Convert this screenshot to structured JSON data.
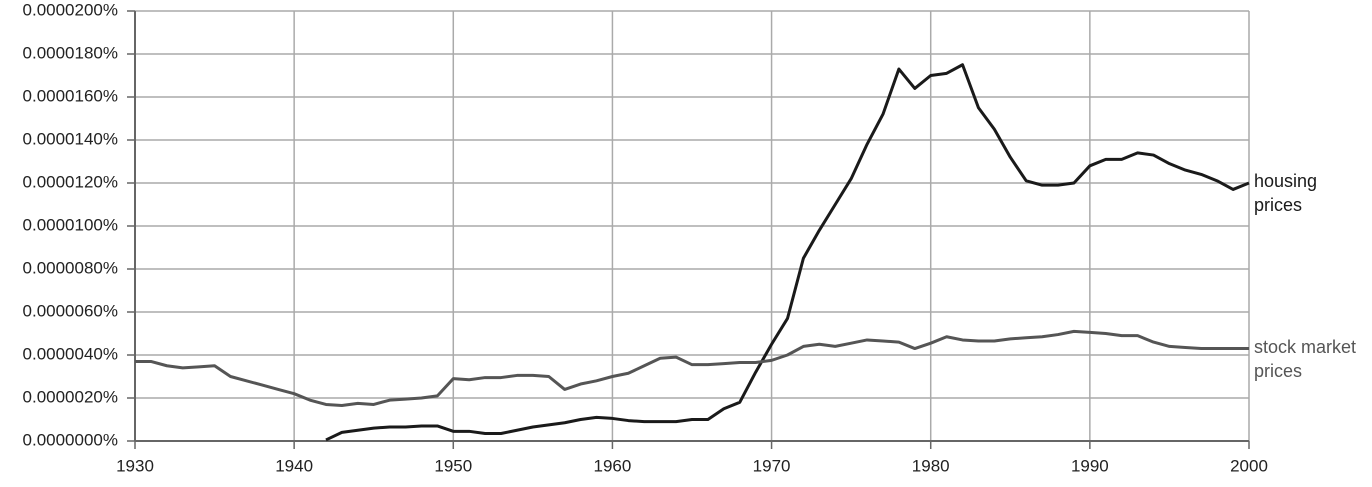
{
  "chart_data": {
    "type": "line",
    "x": [
      1930,
      1931,
      1932,
      1933,
      1934,
      1935,
      1936,
      1937,
      1938,
      1939,
      1940,
      1941,
      1942,
      1943,
      1944,
      1945,
      1946,
      1947,
      1948,
      1949,
      1950,
      1951,
      1952,
      1953,
      1954,
      1955,
      1956,
      1957,
      1958,
      1959,
      1960,
      1961,
      1962,
      1963,
      1964,
      1965,
      1966,
      1967,
      1968,
      1969,
      1970,
      1971,
      1972,
      1973,
      1974,
      1975,
      1976,
      1977,
      1978,
      1979,
      1980,
      1981,
      1982,
      1983,
      1984,
      1985,
      1986,
      1987,
      1988,
      1989,
      1990,
      1991,
      1992,
      1993,
      1994,
      1995,
      1996,
      1997,
      1998,
      1999,
      2000
    ],
    "series": [
      {
        "name": "housing prices",
        "color": "#1a1a1a",
        "values": [
          null,
          null,
          null,
          null,
          null,
          null,
          null,
          null,
          null,
          null,
          null,
          null,
          5e-08,
          4e-07,
          5e-07,
          6e-07,
          6.5e-07,
          6.5e-07,
          7e-07,
          7e-07,
          4.5e-07,
          4.5e-07,
          3.5e-07,
          3.5e-07,
          5e-07,
          6.5e-07,
          7.5e-07,
          8.5e-07,
          1e-06,
          1.1e-06,
          1.05e-06,
          9.5e-07,
          9e-07,
          9e-07,
          9e-07,
          1e-06,
          1e-06,
          1.5e-06,
          1.8e-06,
          3.2e-06,
          4.5e-06,
          5.7e-06,
          8.5e-06,
          9.8e-06,
          1.1e-05,
          1.22e-05,
          1.38e-05,
          1.52e-05,
          1.73e-05,
          1.64e-05,
          1.7e-05,
          1.71e-05,
          1.75e-05,
          1.55e-05,
          1.45e-05,
          1.32e-05,
          1.21e-05,
          1.19e-05,
          1.19e-05,
          1.2e-05,
          1.28e-05,
          1.31e-05,
          1.31e-05,
          1.34e-05,
          1.33e-05,
          1.29e-05,
          1.26e-05,
          1.24e-05,
          1.21e-05,
          1.17e-05,
          1.2e-05
        ]
      },
      {
        "name": "stock market prices",
        "color": "#555555",
        "values": [
          3.7e-06,
          3.7e-06,
          3.5e-06,
          3.4e-06,
          3.45e-06,
          3.5e-06,
          3e-06,
          2.8e-06,
          2.6e-06,
          2.4e-06,
          2.2e-06,
          1.9e-06,
          1.7e-06,
          1.65e-06,
          1.75e-06,
          1.7e-06,
          1.9e-06,
          1.95e-06,
          2e-06,
          2.1e-06,
          2.9e-06,
          2.85e-06,
          2.95e-06,
          2.95e-06,
          3.05e-06,
          3.05e-06,
          3e-06,
          2.4e-06,
          2.65e-06,
          2.8e-06,
          3e-06,
          3.15e-06,
          3.5e-06,
          3.85e-06,
          3.9e-06,
          3.55e-06,
          3.55e-06,
          3.6e-06,
          3.65e-06,
          3.65e-06,
          3.75e-06,
          4e-06,
          4.4e-06,
          4.5e-06,
          4.4e-06,
          4.55e-06,
          4.7e-06,
          4.65e-06,
          4.6e-06,
          4.3e-06,
          4.55e-06,
          4.85e-06,
          4.7e-06,
          4.65e-06,
          4.65e-06,
          4.75e-06,
          4.8e-06,
          4.85e-06,
          4.95e-06,
          5.1e-06,
          5.05e-06,
          5e-06,
          4.9e-06,
          4.9e-06,
          4.6e-06,
          4.4e-06,
          4.35e-06,
          4.3e-06,
          4.3e-06,
          4.3e-06,
          4.3e-06
        ]
      }
    ],
    "xlim": [
      1930,
      2000
    ],
    "xticks": [
      1930,
      1940,
      1950,
      1960,
      1970,
      1980,
      1990,
      2000
    ],
    "ylim": [
      0,
      2e-05
    ],
    "yticks": [
      {
        "value": 0,
        "label": "0.0000000%"
      },
      {
        "value": 2e-06,
        "label": "0.0000020%"
      },
      {
        "value": 4e-06,
        "label": "0.0000040%"
      },
      {
        "value": 6e-06,
        "label": "0.0000060%"
      },
      {
        "value": 8e-06,
        "label": "0.0000080%"
      },
      {
        "value": 1e-05,
        "label": "0.0000100%"
      },
      {
        "value": 1.2e-05,
        "label": "0.0000120%"
      },
      {
        "value": 1.4e-05,
        "label": "0.0000140%"
      },
      {
        "value": 1.6e-05,
        "label": "0.0000160%"
      },
      {
        "value": 1.8e-05,
        "label": "0.0000180%"
      },
      {
        "value": 2e-05,
        "label": "0.0000200%"
      }
    ],
    "grid": true
  }
}
